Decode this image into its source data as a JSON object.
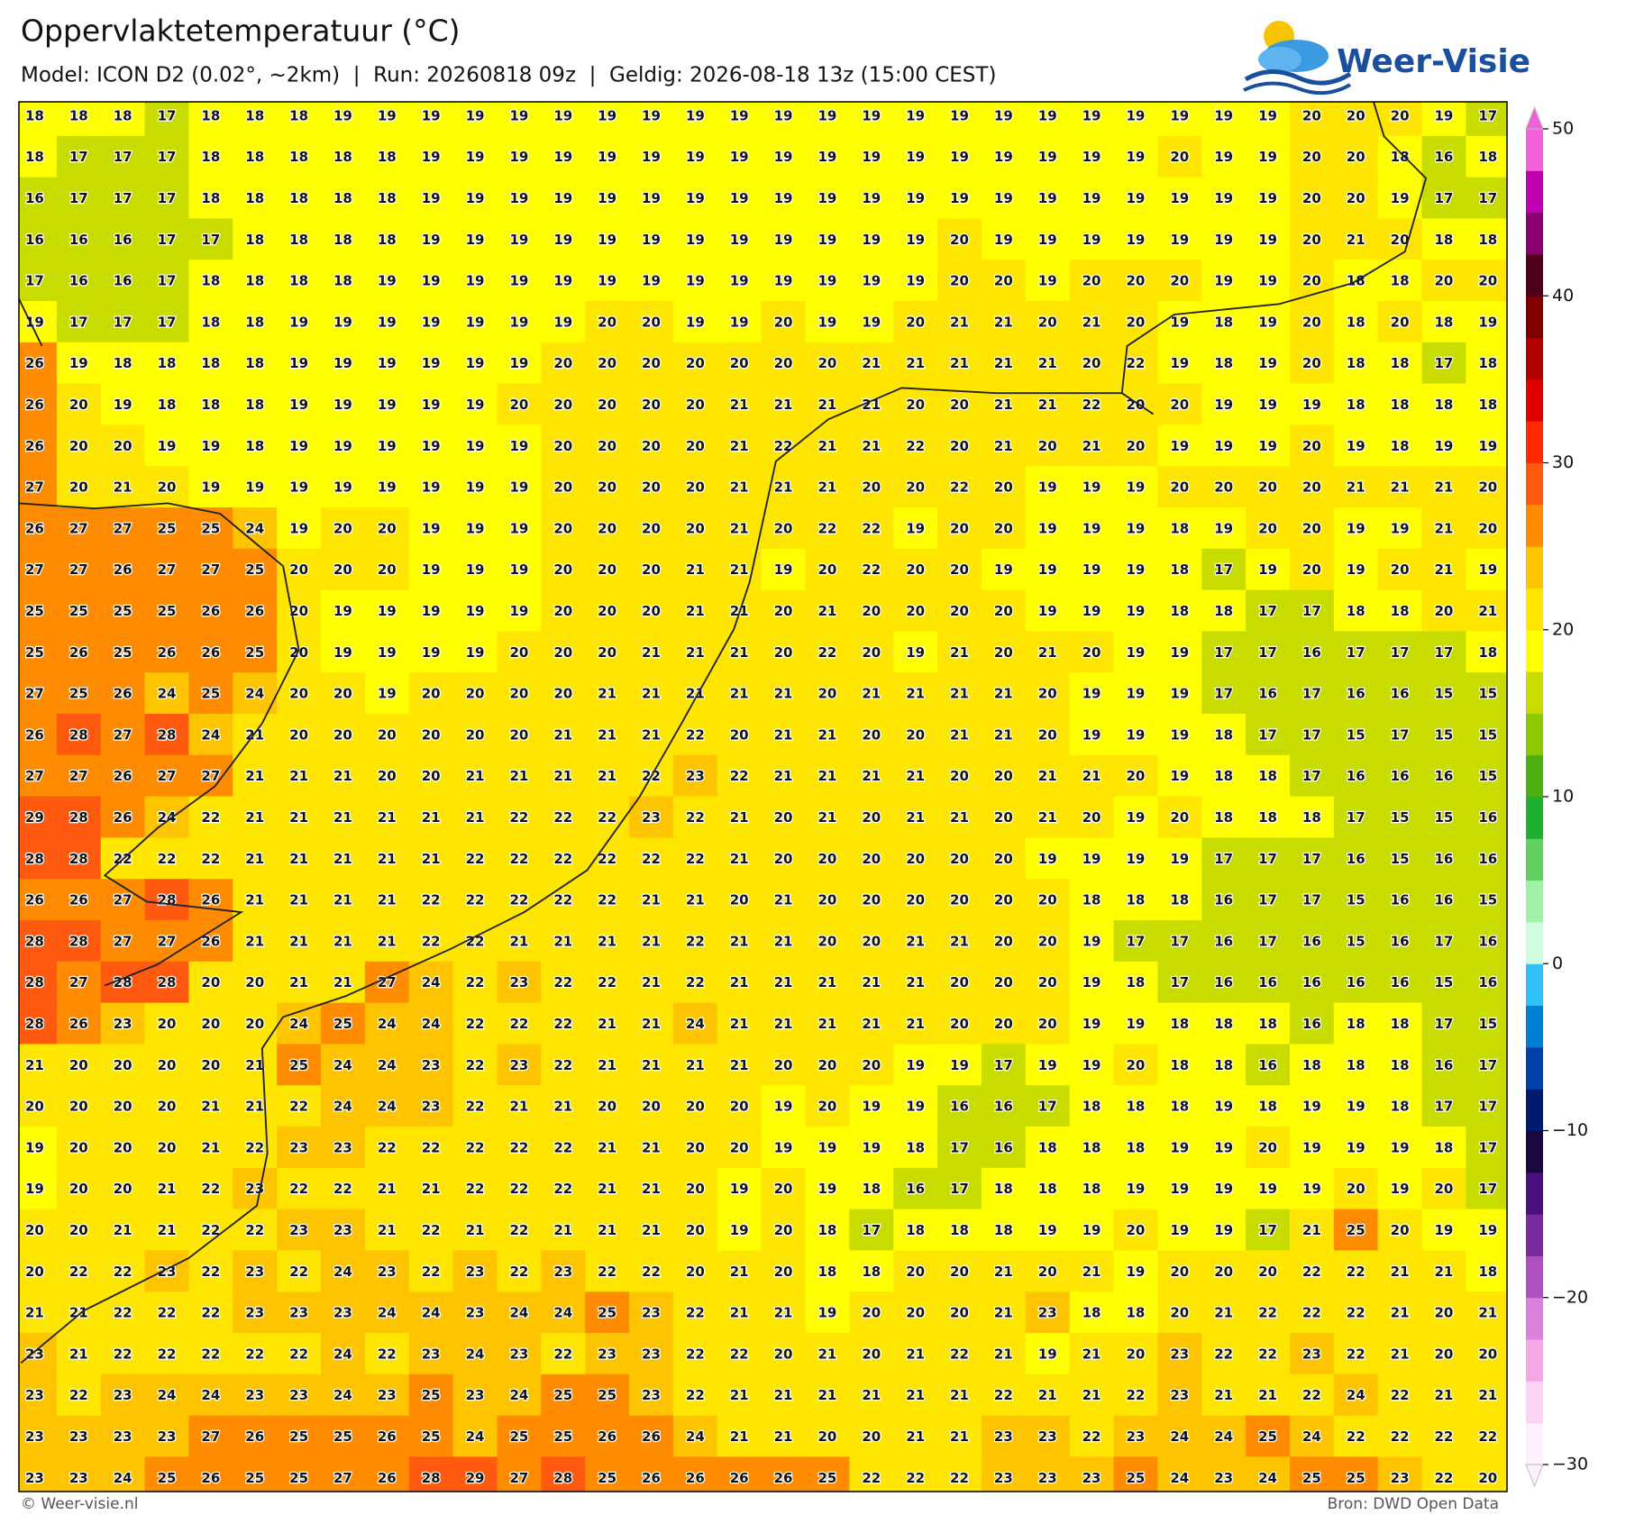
{
  "header": {
    "title": "Oppervlaktetemperatuur (°C)",
    "subtitle": "Model: ICON D2 (0.02°, ~2km)  |  Run: 20260818 09z  |  Geldig: 2026-08-18 13z (15:00 CEST)"
  },
  "logo": "Weer-Visie",
  "footer": {
    "left": "© Weer-visie.nl",
    "right": "Bron: DWD Open Data"
  },
  "chart_data": {
    "type": "heatmap",
    "values": [
      [
        18,
        18,
        18,
        17,
        18,
        18,
        18,
        19,
        19,
        19,
        19,
        19,
        19,
        19,
        19,
        19,
        19,
        19,
        19,
        19,
        19,
        19,
        19,
        19,
        19,
        19,
        19,
        19,
        19,
        20,
        20,
        20,
        19,
        17
      ],
      [
        18,
        17,
        17,
        17,
        18,
        18,
        18,
        18,
        18,
        19,
        19,
        19,
        19,
        19,
        19,
        19,
        19,
        19,
        19,
        19,
        19,
        19,
        19,
        19,
        19,
        19,
        20,
        19,
        19,
        20,
        20,
        18,
        16,
        18
      ],
      [
        16,
        17,
        17,
        17,
        18,
        18,
        18,
        18,
        18,
        19,
        19,
        19,
        19,
        19,
        19,
        19,
        19,
        19,
        19,
        19,
        19,
        19,
        19,
        19,
        19,
        19,
        19,
        19,
        19,
        20,
        20,
        19,
        17,
        17
      ],
      [
        16,
        16,
        16,
        17,
        17,
        18,
        18,
        18,
        18,
        19,
        19,
        19,
        19,
        19,
        19,
        19,
        19,
        19,
        19,
        19,
        19,
        20,
        19,
        19,
        19,
        19,
        19,
        19,
        19,
        20,
        21,
        20,
        18,
        18
      ],
      [
        17,
        16,
        16,
        17,
        18,
        18,
        18,
        18,
        19,
        19,
        19,
        19,
        19,
        19,
        19,
        19,
        19,
        19,
        19,
        19,
        19,
        20,
        20,
        19,
        20,
        20,
        20,
        19,
        19,
        20,
        18,
        18,
        20,
        20
      ],
      [
        19,
        17,
        17,
        17,
        18,
        18,
        19,
        19,
        19,
        19,
        19,
        19,
        19,
        20,
        20,
        19,
        19,
        20,
        19,
        19,
        20,
        21,
        21,
        20,
        21,
        20,
        19,
        18,
        19,
        20,
        18,
        20,
        18,
        19
      ],
      [
        26,
        19,
        18,
        18,
        18,
        18,
        19,
        19,
        19,
        19,
        19,
        19,
        20,
        20,
        20,
        20,
        20,
        20,
        20,
        21,
        21,
        21,
        21,
        21,
        20,
        22,
        19,
        18,
        19,
        20,
        18,
        18,
        17,
        18
      ],
      [
        26,
        20,
        19,
        18,
        18,
        18,
        19,
        19,
        19,
        19,
        19,
        20,
        20,
        20,
        20,
        20,
        21,
        21,
        21,
        21,
        20,
        20,
        21,
        21,
        22,
        20,
        20,
        19,
        19,
        19,
        18,
        18,
        18,
        18
      ],
      [
        26,
        20,
        20,
        19,
        19,
        18,
        19,
        19,
        19,
        19,
        19,
        19,
        20,
        20,
        20,
        20,
        21,
        22,
        21,
        21,
        22,
        20,
        21,
        20,
        21,
        20,
        19,
        19,
        19,
        20,
        19,
        18,
        19,
        19
      ],
      [
        27,
        20,
        21,
        20,
        19,
        19,
        19,
        19,
        19,
        19,
        19,
        19,
        20,
        20,
        20,
        20,
        21,
        21,
        21,
        20,
        20,
        22,
        20,
        19,
        19,
        19,
        20,
        20,
        20,
        20,
        21,
        21,
        21,
        20
      ],
      [
        26,
        27,
        27,
        25,
        25,
        24,
        19,
        20,
        20,
        19,
        19,
        19,
        20,
        20,
        20,
        20,
        21,
        20,
        22,
        22,
        19,
        20,
        20,
        19,
        19,
        19,
        18,
        19,
        20,
        20,
        19,
        19,
        21,
        20
      ],
      [
        27,
        27,
        26,
        27,
        27,
        25,
        20,
        20,
        20,
        19,
        19,
        19,
        20,
        20,
        20,
        21,
        21,
        19,
        20,
        22,
        20,
        20,
        19,
        19,
        19,
        19,
        18,
        17,
        19,
        20,
        19,
        20,
        21,
        19
      ],
      [
        25,
        25,
        25,
        25,
        26,
        26,
        20,
        19,
        19,
        19,
        19,
        19,
        20,
        20,
        20,
        21,
        21,
        20,
        21,
        20,
        20,
        20,
        20,
        19,
        19,
        19,
        18,
        18,
        17,
        17,
        18,
        18,
        20,
        21
      ],
      [
        25,
        26,
        25,
        26,
        26,
        25,
        20,
        19,
        19,
        19,
        19,
        20,
        20,
        20,
        21,
        21,
        21,
        20,
        22,
        20,
        19,
        21,
        20,
        21,
        20,
        19,
        19,
        17,
        17,
        16,
        17,
        17,
        17,
        18
      ],
      [
        27,
        25,
        26,
        24,
        25,
        24,
        20,
        20,
        19,
        20,
        20,
        20,
        20,
        21,
        21,
        21,
        21,
        21,
        20,
        21,
        21,
        21,
        21,
        20,
        19,
        19,
        19,
        17,
        16,
        17,
        16,
        16,
        15,
        15
      ],
      [
        26,
        28,
        27,
        28,
        24,
        21,
        20,
        20,
        20,
        20,
        20,
        20,
        21,
        21,
        21,
        22,
        20,
        21,
        21,
        20,
        20,
        21,
        21,
        20,
        19,
        19,
        19,
        18,
        17,
        17,
        15,
        17,
        15,
        15
      ],
      [
        27,
        27,
        26,
        27,
        27,
        21,
        21,
        21,
        20,
        20,
        21,
        21,
        21,
        21,
        22,
        23,
        22,
        21,
        21,
        21,
        21,
        20,
        20,
        21,
        21,
        20,
        19,
        18,
        18,
        17,
        16,
        16,
        16,
        15
      ],
      [
        29,
        28,
        26,
        24,
        22,
        21,
        21,
        21,
        21,
        21,
        21,
        22,
        22,
        22,
        23,
        22,
        21,
        20,
        21,
        20,
        21,
        21,
        20,
        21,
        20,
        19,
        20,
        18,
        18,
        18,
        17,
        15,
        15,
        16
      ],
      [
        28,
        28,
        22,
        22,
        22,
        21,
        21,
        21,
        21,
        21,
        22,
        22,
        22,
        22,
        22,
        22,
        21,
        20,
        20,
        20,
        20,
        20,
        20,
        19,
        19,
        19,
        19,
        17,
        17,
        17,
        16,
        15,
        16,
        16
      ],
      [
        26,
        26,
        27,
        28,
        26,
        21,
        21,
        21,
        21,
        22,
        22,
        22,
        22,
        22,
        21,
        21,
        20,
        21,
        20,
        20,
        20,
        20,
        20,
        20,
        18,
        18,
        18,
        16,
        17,
        17,
        15,
        16,
        16,
        15
      ],
      [
        28,
        28,
        27,
        27,
        26,
        21,
        21,
        21,
        21,
        22,
        22,
        21,
        21,
        21,
        21,
        22,
        21,
        21,
        20,
        20,
        21,
        21,
        20,
        20,
        19,
        17,
        17,
        16,
        17,
        16,
        15,
        16,
        17,
        16
      ],
      [
        28,
        27,
        28,
        28,
        20,
        20,
        21,
        21,
        27,
        24,
        22,
        23,
        22,
        22,
        21,
        22,
        21,
        21,
        21,
        21,
        21,
        20,
        20,
        20,
        19,
        18,
        17,
        16,
        16,
        16,
        16,
        16,
        15,
        16
      ],
      [
        28,
        26,
        23,
        20,
        20,
        20,
        24,
        25,
        24,
        24,
        22,
        22,
        22,
        21,
        21,
        24,
        21,
        21,
        21,
        21,
        21,
        20,
        20,
        20,
        19,
        19,
        18,
        18,
        18,
        16,
        18,
        18,
        17,
        15
      ],
      [
        21,
        20,
        20,
        20,
        20,
        21,
        25,
        24,
        24,
        23,
        22,
        23,
        22,
        21,
        21,
        21,
        21,
        20,
        20,
        20,
        19,
        19,
        17,
        19,
        19,
        20,
        18,
        18,
        16,
        18,
        18,
        18,
        16,
        17
      ],
      [
        20,
        20,
        20,
        20,
        21,
        21,
        22,
        24,
        24,
        23,
        22,
        21,
        21,
        20,
        20,
        20,
        20,
        19,
        20,
        19,
        19,
        16,
        16,
        17,
        18,
        18,
        18,
        19,
        18,
        19,
        19,
        18,
        17,
        17
      ],
      [
        19,
        20,
        20,
        20,
        21,
        22,
        23,
        23,
        22,
        22,
        22,
        22,
        22,
        21,
        21,
        20,
        20,
        19,
        19,
        19,
        18,
        17,
        16,
        18,
        18,
        18,
        19,
        19,
        20,
        19,
        19,
        19,
        18,
        17
      ],
      [
        19,
        20,
        20,
        21,
        22,
        23,
        22,
        22,
        21,
        21,
        22,
        22,
        22,
        21,
        21,
        20,
        19,
        20,
        19,
        18,
        16,
        17,
        18,
        18,
        18,
        19,
        19,
        19,
        19,
        19,
        20,
        19,
        20,
        17
      ],
      [
        20,
        20,
        21,
        21,
        22,
        22,
        23,
        23,
        21,
        22,
        21,
        22,
        21,
        21,
        21,
        20,
        19,
        20,
        18,
        17,
        18,
        18,
        18,
        19,
        19,
        20,
        19,
        19,
        17,
        21,
        25,
        20,
        19,
        19
      ],
      [
        20,
        22,
        22,
        23,
        22,
        23,
        22,
        24,
        23,
        22,
        23,
        22,
        23,
        22,
        22,
        20,
        21,
        20,
        18,
        18,
        20,
        20,
        21,
        20,
        21,
        19,
        20,
        20,
        20,
        22,
        22,
        21,
        21,
        18
      ],
      [
        21,
        21,
        22,
        22,
        22,
        23,
        23,
        23,
        24,
        24,
        23,
        24,
        24,
        25,
        23,
        22,
        21,
        21,
        19,
        20,
        20,
        20,
        21,
        23,
        18,
        18,
        20,
        21,
        22,
        22,
        22,
        21,
        20,
        21
      ],
      [
        23,
        21,
        22,
        22,
        22,
        22,
        22,
        24,
        22,
        23,
        24,
        23,
        22,
        23,
        23,
        22,
        22,
        20,
        21,
        20,
        21,
        22,
        21,
        19,
        21,
        20,
        23,
        22,
        22,
        23,
        22,
        21,
        20,
        20
      ],
      [
        23,
        22,
        23,
        24,
        24,
        23,
        23,
        24,
        23,
        25,
        23,
        24,
        25,
        25,
        23,
        22,
        21,
        21,
        21,
        21,
        21,
        21,
        22,
        21,
        21,
        22,
        23,
        21,
        21,
        22,
        24,
        22,
        21,
        21
      ],
      [
        23,
        23,
        23,
        23,
        27,
        26,
        25,
        25,
        26,
        25,
        24,
        25,
        25,
        26,
        26,
        24,
        21,
        21,
        20,
        20,
        21,
        21,
        23,
        23,
        22,
        23,
        24,
        24,
        25,
        24,
        22,
        22,
        22,
        22
      ],
      [
        23,
        23,
        24,
        25,
        26,
        25,
        25,
        27,
        26,
        28,
        29,
        27,
        28,
        25,
        26,
        26,
        26,
        26,
        25,
        22,
        22,
        22,
        23,
        23,
        23,
        25,
        24,
        23,
        24,
        25,
        25,
        23,
        22,
        20
      ]
    ],
    "colorbar": {
      "lim": [
        -30,
        50
      ],
      "ticks": [
        {
          "value": -30,
          "label": "−30"
        },
        {
          "value": -20,
          "label": "−20"
        },
        {
          "value": -10,
          "label": "−10"
        },
        0,
        10,
        20,
        30,
        40,
        50
      ],
      "levels": [
        -30,
        -27.5,
        -25,
        -22.5,
        -20,
        -17.5,
        -15,
        -12.5,
        -10,
        -7.5,
        -5,
        -2.5,
        0,
        2.5,
        5,
        7.5,
        10,
        12.5,
        15,
        17.5,
        20,
        22.5,
        25,
        27.5,
        30,
        32.5,
        35,
        37.5,
        40,
        42.5,
        45,
        47.5,
        50
      ],
      "colors": [
        "#fef0fc",
        "#fcd4f6",
        "#f4a8e8",
        "#dc80dc",
        "#b050c0",
        "#7a2aa0",
        "#4a1080",
        "#1a0840",
        "#001a70",
        "#0040a8",
        "#0080d0",
        "#30c0f8",
        "#d0fce0",
        "#a0f0a8",
        "#60d060",
        "#20b030",
        "#4cb010",
        "#8cc800",
        "#c8dc00",
        "#ffff00",
        "#ffe600",
        "#ffc400",
        "#ff8c00",
        "#ff5a10",
        "#ff2a00",
        "#e00000",
        "#b00000",
        "#800000",
        "#500018",
        "#8a0070",
        "#c000b0",
        "#f060d8"
      ]
    }
  }
}
